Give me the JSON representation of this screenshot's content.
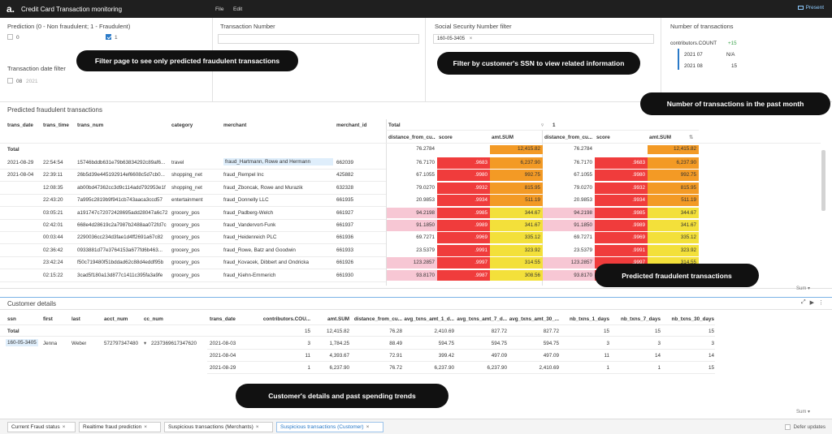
{
  "app": {
    "title": "Credit Card Transaction monitoring",
    "menu": [
      "File",
      "Edit"
    ],
    "present_label": "Present",
    "logo_text": "a."
  },
  "filters": {
    "prediction": {
      "title": "Prediction (0 - Non fraudulent; 1 - Fraudulent)",
      "options": [
        {
          "label": "0",
          "checked": false
        },
        {
          "label": "1",
          "checked": true
        }
      ]
    },
    "transaction_number": {
      "title": "Transaction Number",
      "value": ""
    },
    "ssn": {
      "title": "Social Security Number filter",
      "chip": "160-05-3405",
      "chip_remove": "×"
    },
    "date": {
      "title": "Transaction date filter",
      "options": [
        {
          "label": "08",
          "sub": "2021",
          "checked": false
        }
      ]
    },
    "count": {
      "title": "Number of transactions",
      "measure": "contributors.COUNT",
      "delta": "+15",
      "rows": [
        {
          "label": "2021 07",
          "value": "N/A"
        },
        {
          "label": "2021 08",
          "value": "15"
        }
      ]
    }
  },
  "callouts": {
    "filter_page": "Filter page to see only predicted fraudulent transactions",
    "filter_ssn": "Filter by customer's SSN to view related information",
    "count_month": "Number of transactions in the past month",
    "predicted": "Predicted fraudulent transactions",
    "customer": "Customer's details and past spending trends"
  },
  "main_table": {
    "title": "Predicted fraudulent transactions",
    "headers": [
      "trans_date",
      "trans_time",
      "trans_num",
      "category",
      "merchant",
      "merchant_id"
    ],
    "group_headers": {
      "total": "Total",
      "one": "1",
      "arrow": "▿"
    },
    "measure_headers": [
      "distance_from_cu...",
      "score",
      "amt.SUM",
      "distance_from_cu...",
      "score",
      "amt.SUM"
    ],
    "sort_icon": "⇅",
    "total_row": {
      "label": "Total",
      "dist": "76.2784",
      "amt": "12,415.82"
    },
    "rows": [
      {
        "date": "2021-08-29",
        "time": "22:54:54",
        "num": "15746bddb631e79b63834292c89af6...",
        "cat": "travel",
        "merchant": "fraud_Hartmann, Rowe and Hermann",
        "mid": "662039",
        "dist": "76.7170",
        "score": ".9683",
        "amt": "6,237.90",
        "score_color": "#f03c3c",
        "amt_color": "#f39a25",
        "dist_color": "#ffffff"
      },
      {
        "date": "2021-08-04",
        "time": "22:39:11",
        "num": "26b5d39e445192914ef6608c5d7cb0...",
        "cat": "shopping_net",
        "merchant": "fraud_Rempel Inc",
        "mid": "425882",
        "dist": "67.1055",
        "score": ".9980",
        "amt": "992.75",
        "score_color": "#f03c3c",
        "amt_color": "#f39a25",
        "dist_color": "#ffffff"
      },
      {
        "date": "",
        "time": "12:08:35",
        "num": "ab00bd47362cc3d9c114add792953e1f",
        "cat": "shopping_net",
        "merchant": "fraud_Zboncak, Rowe and Murazik",
        "mid": "632328",
        "dist": "79.0270",
        "score": ".9932",
        "amt": "815.95",
        "score_color": "#f03c3c",
        "amt_color": "#f39a25",
        "dist_color": "#ffffff"
      },
      {
        "date": "",
        "time": "22:43:20",
        "num": "7a995c2819b9f941cb743aaca3ccd57",
        "cat": "entertainment",
        "merchant": "fraud_Donnelly LLC",
        "mid": "661935",
        "dist": "20.9853",
        "score": ".9934",
        "amt": "511.19",
        "score_color": "#f03c3c",
        "amt_color": "#f39a25",
        "dist_color": "#ffffff"
      },
      {
        "date": "",
        "time": "03:05:21",
        "num": "a191747c72072428695add28047a6c72",
        "cat": "grocery_pos",
        "merchant": "fraud_Padberg-Welch",
        "mid": "661927",
        "dist": "94.2198",
        "score": ".9985",
        "amt": "344.67",
        "score_color": "#f03c3c",
        "amt_color": "#f3e03a",
        "dist_color": "#f7c7d4"
      },
      {
        "date": "",
        "time": "02:42:01",
        "num": "668e4d28619c2a7987b2488aa072fd7c",
        "cat": "grocery_pos",
        "merchant": "fraud_Vandervort-Funk",
        "mid": "661937",
        "dist": "91.1850",
        "score": ".9989",
        "amt": "341.67",
        "score_color": "#f03c3c",
        "amt_color": "#f3e03a",
        "dist_color": "#f7c7d4"
      },
      {
        "date": "",
        "time": "00:03:44",
        "num": "2290036cc234d3fae1d4ff2691a67c82",
        "cat": "grocery_pos",
        "merchant": "fraud_Heidenreich PLC",
        "mid": "661936",
        "dist": "69.7271",
        "score": ".9969",
        "amt": "335.12",
        "score_color": "#f03c3c",
        "amt_color": "#f3e03a",
        "dist_color": "#ffffff"
      },
      {
        "date": "",
        "time": "02:36:42",
        "num": "0933881d77e3764153a677fd6b463...",
        "cat": "grocery_pos",
        "merchant": "fraud_Rowe, Batz and Goodwin",
        "mid": "661933",
        "dist": "23.5379",
        "score": ".9991",
        "amt": "323.92",
        "score_color": "#f03c3c",
        "amt_color": "#f3e03a",
        "dist_color": "#ffffff"
      },
      {
        "date": "",
        "time": "23:42:24",
        "num": "f50c719480f51bddad62c88d4eddf95b",
        "cat": "grocery_pos",
        "merchant": "fraud_Kovacek, Dibbert and Ondricka",
        "mid": "661926",
        "dist": "123.2857",
        "score": ".9997",
        "amt": "314.55",
        "score_color": "#f03c3c",
        "amt_color": "#f3e03a",
        "dist_color": "#f7c7d4"
      },
      {
        "date": "",
        "time": "02:15:22",
        "num": "3cad5f180a13d877c1411c395fa3a9fe",
        "cat": "grocery_pos",
        "merchant": "fraud_Kiehn-Emmerich",
        "mid": "661930",
        "dist": "93.8170",
        "score": ".9987",
        "amt": "308.56",
        "score_color": "#f03c3c",
        "amt_color": "#f3e03a",
        "dist_color": "#f7c7d4"
      }
    ],
    "sum_label": "Sum ▾"
  },
  "customer": {
    "title": "Customer details",
    "headers": [
      "ssn",
      "first",
      "last",
      "acct_num",
      "cc_num",
      "trans_date",
      "contributors.COU...",
      "amt.SUM",
      "distance_from_cu...",
      "avg_txns_amt_1_d...",
      "avg_txns_amt_7_d...",
      "avg_txns_amt_30_...",
      "nb_txns_1_days",
      "nb_txns_7_days",
      "nb_txns_30_days"
    ],
    "total": {
      "label": "Total",
      "count": "15",
      "amt": "12,415.82",
      "dist": "76.28",
      "avg1": "2,410.69",
      "avg7": "827.72",
      "avg30": "827.72",
      "nb1": "15",
      "nb7": "15",
      "nb30": "15"
    },
    "person": {
      "ssn": "160-05-3405",
      "first": "Jenna",
      "last": "Weber",
      "acct": "572797347480",
      "cc": "2237369617347620",
      "cc_toggle": "▾"
    },
    "rows": [
      {
        "date": "2021-08-03",
        "count": "3",
        "amt": "1,784.25",
        "dist": "88.49",
        "avg1": "594.75",
        "avg7": "594.75",
        "avg30": "594.75",
        "nb1": "3",
        "nb7": "3",
        "nb30": "3"
      },
      {
        "date": "2021-08-04",
        "count": "11",
        "amt": "4,393.67",
        "dist": "72.91",
        "avg1": "399.42",
        "avg7": "497.09",
        "avg30": "497.09",
        "nb1": "11",
        "nb7": "14",
        "nb30": "14"
      },
      {
        "date": "2021-08-29",
        "count": "1",
        "amt": "6,237.90",
        "dist": "76.72",
        "avg1": "6,237.90",
        "avg7": "6,237.90",
        "avg30": "2,410.69",
        "nb1": "1",
        "nb7": "1",
        "nb30": "15"
      }
    ],
    "sum_label": "Sum ▾",
    "icons": [
      "⤢",
      "▶",
      "⋮"
    ]
  },
  "tabs": [
    {
      "label": "Current Fraud status",
      "active": false
    },
    {
      "label": "Realtime fraud prediction",
      "active": false
    },
    {
      "label": "Suspicious transactions (Merchants)",
      "active": false
    },
    {
      "label": "Suspicious transactions (Customer)",
      "active": true
    }
  ],
  "tab_close": "×",
  "defer_label": "Defer updates",
  "colors": {
    "score_red": "#f03c3c",
    "amt_orange": "#f39a25",
    "amt_yellow": "#f3e03a",
    "dist_pink": "#f7c7d4",
    "accent": "#2a7ac8"
  }
}
